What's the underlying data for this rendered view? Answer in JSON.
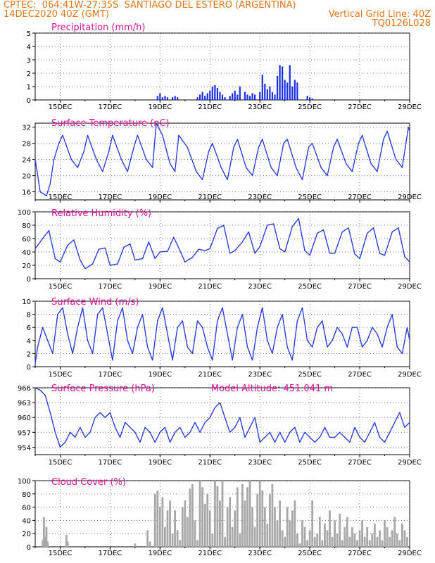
{
  "header": {
    "line1_left": "CPTEC:  064:41W-27:35S  SANTIAGO DEL ESTERO (ARGENTINA)",
    "line2_left": "14DEC2020 40Z (GMT)",
    "line2_right": "Vertical Grid Line: 40Z",
    "line3_right": "TQ0126L028"
  },
  "colors": {
    "header_text": "#e8761a",
    "panel_title": "#e0119a",
    "series_line": "#2a3ee0",
    "precip_bar": "#1a2ee8",
    "cloud_bar": "#a8a8a8",
    "grid": "#555555"
  },
  "chart_data": [
    {
      "type": "bar",
      "title": "Precipitation (mm/h)",
      "x_tick_labels": [
        "15DEC",
        "17DEC",
        "19DEC",
        "21DEC",
        "23DEC",
        "25DEC",
        "27DEC",
        "29DEC"
      ],
      "xlim_days": [
        14.0,
        29.0
      ],
      "ylim": [
        0,
        5
      ],
      "y_ticks": [
        0,
        1,
        2,
        3,
        4,
        5
      ],
      "x": [
        18.9,
        19.0,
        19.1,
        19.2,
        19.3,
        19.5,
        19.6,
        19.7,
        20.5,
        20.6,
        20.7,
        20.8,
        20.9,
        21.0,
        21.1,
        21.2,
        21.3,
        21.4,
        21.5,
        21.6,
        21.8,
        21.9,
        22.0,
        22.1,
        22.2,
        22.4,
        22.5,
        22.6,
        22.7,
        22.8,
        23.0,
        23.1,
        23.2,
        23.3,
        23.4,
        23.5,
        23.6,
        23.7,
        23.8,
        23.9,
        24.0,
        24.1,
        24.2,
        24.3,
        24.4,
        24.5,
        24.9,
        25.0,
        25.1
      ],
      "values": [
        0.3,
        0.5,
        0.2,
        0.3,
        0.2,
        0.2,
        0.3,
        0.2,
        0.2,
        0.4,
        0.6,
        0.3,
        0.5,
        0.7,
        1.0,
        1.1,
        0.9,
        0.6,
        0.4,
        0.2,
        0.3,
        0.5,
        0.7,
        0.4,
        1.0,
        0.6,
        0.4,
        0.3,
        0.5,
        0.4,
        0.6,
        1.9,
        1.2,
        0.8,
        1.0,
        0.6,
        0.4,
        1.8,
        2.6,
        2.5,
        1.5,
        1.3,
        2.6,
        1.0,
        1.5,
        1.3,
        0.3,
        0.2,
        0.1
      ]
    },
    {
      "type": "line",
      "title": "Surface Temperature (nC)",
      "x_tick_labels": [
        "15DEC",
        "17DEC",
        "19DEC",
        "21DEC",
        "23DEC",
        "25DEC",
        "27DEC",
        "29DEC"
      ],
      "xlim_days": [
        14.0,
        29.0
      ],
      "ylim": [
        14,
        33
      ],
      "y_ticks": [
        16,
        20,
        24,
        28,
        32
      ],
      "x": [
        14.0,
        14.2,
        14.45,
        14.6,
        14.75,
        14.95,
        15.1,
        15.45,
        15.7,
        15.95,
        16.1,
        16.45,
        16.7,
        16.95,
        17.1,
        17.45,
        17.7,
        17.95,
        18.1,
        18.45,
        18.7,
        18.85,
        19.1,
        19.4,
        19.6,
        19.75,
        20.1,
        20.45,
        20.7,
        20.95,
        21.1,
        21.45,
        21.7,
        21.95,
        22.1,
        22.45,
        22.7,
        22.95,
        23.1,
        23.45,
        23.7,
        23.95,
        24.1,
        24.45,
        24.7,
        24.95,
        25.1,
        25.45,
        25.7,
        25.95,
        26.1,
        26.45,
        26.7,
        26.95,
        27.1,
        27.45,
        27.7,
        27.95,
        28.1,
        28.45,
        28.7,
        28.95,
        29.0
      ],
      "values": [
        24,
        16,
        15,
        18,
        24,
        28,
        30,
        24,
        22,
        26,
        30,
        24,
        21,
        26,
        30,
        24,
        21,
        27,
        30,
        24,
        22,
        33,
        30,
        23,
        21,
        30,
        27,
        21,
        19,
        26,
        28,
        22,
        19,
        27,
        29,
        22,
        20,
        27,
        29,
        22,
        20,
        28,
        29,
        22,
        19,
        27,
        28,
        22,
        20,
        27,
        29,
        23,
        21,
        28,
        30,
        23,
        21,
        29,
        31,
        24,
        22,
        32,
        31
      ]
    },
    {
      "type": "line",
      "title": "Relative Humidity (%)",
      "x_tick_labels": [
        "15DEC",
        "17DEC",
        "19DEC",
        "21DEC",
        "23DEC",
        "25DEC",
        "27DEC",
        "29DEC"
      ],
      "xlim_days": [
        14.0,
        29.0
      ],
      "ylim": [
        0,
        100
      ],
      "y_ticks": [
        0,
        20,
        40,
        60,
        80,
        100
      ],
      "x": [
        14.0,
        14.3,
        14.55,
        14.8,
        15.0,
        15.3,
        15.55,
        15.8,
        16.0,
        16.3,
        16.55,
        16.8,
        17.0,
        17.3,
        17.55,
        17.8,
        18.0,
        18.3,
        18.55,
        18.8,
        19.0,
        19.3,
        19.55,
        19.8,
        20.0,
        20.3,
        20.55,
        20.8,
        21.0,
        21.3,
        21.55,
        21.8,
        22.0,
        22.3,
        22.55,
        22.8,
        23.0,
        23.3,
        23.55,
        23.8,
        24.0,
        24.3,
        24.55,
        24.8,
        25.0,
        25.3,
        25.55,
        25.8,
        26.0,
        26.3,
        26.55,
        26.8,
        27.0,
        27.3,
        27.55,
        27.8,
        28.0,
        28.3,
        28.55,
        28.8,
        29.0
      ],
      "values": [
        45,
        60,
        72,
        30,
        25,
        50,
        58,
        28,
        15,
        22,
        44,
        46,
        20,
        22,
        47,
        52,
        28,
        30,
        55,
        30,
        40,
        41,
        62,
        42,
        25,
        32,
        44,
        42,
        45,
        75,
        80,
        38,
        42,
        55,
        70,
        38,
        48,
        80,
        82,
        45,
        40,
        78,
        90,
        42,
        35,
        68,
        73,
        38,
        38,
        70,
        76,
        37,
        30,
        68,
        76,
        38,
        35,
        70,
        76,
        33,
        25
      ]
    },
    {
      "type": "line",
      "title": "Surface Wind (m/s)",
      "x_tick_labels": [
        "15DEC",
        "17DEC",
        "19DEC",
        "21DEC",
        "23DEC",
        "25DEC",
        "27DEC",
        "29DEC"
      ],
      "xlim_days": [
        14.0,
        29.0
      ],
      "ylim": [
        0,
        10
      ],
      "y_ticks": [
        0,
        2,
        4,
        6,
        8,
        10
      ],
      "x": [
        14.0,
        14.1,
        14.3,
        14.5,
        14.7,
        14.9,
        15.1,
        15.3,
        15.5,
        15.7,
        15.9,
        16.1,
        16.3,
        16.5,
        16.7,
        16.9,
        17.1,
        17.3,
        17.5,
        17.7,
        17.9,
        18.1,
        18.3,
        18.5,
        18.7,
        18.9,
        19.1,
        19.3,
        19.5,
        19.7,
        19.9,
        20.1,
        20.3,
        20.5,
        20.7,
        20.9,
        21.1,
        21.3,
        21.5,
        21.7,
        21.9,
        22.1,
        22.3,
        22.5,
        22.7,
        22.9,
        23.1,
        23.3,
        23.5,
        23.7,
        23.9,
        24.1,
        24.3,
        24.5,
        24.7,
        24.9,
        25.1,
        25.3,
        25.5,
        25.7,
        25.9,
        26.1,
        26.3,
        26.5,
        26.7,
        26.9,
        27.1,
        27.3,
        27.5,
        27.7,
        27.9,
        28.1,
        28.3,
        28.5,
        28.7,
        28.9,
        29.0
      ],
      "values": [
        0.5,
        3,
        6,
        4,
        2,
        8,
        9,
        5,
        2,
        6,
        9,
        4,
        2,
        8,
        9,
        5,
        1,
        7,
        9,
        4,
        2,
        6,
        8,
        3,
        1,
        7,
        9,
        5,
        1,
        6,
        7,
        3,
        2,
        7,
        6,
        3,
        1,
        7,
        9,
        5,
        1,
        6,
        8,
        3,
        1,
        6,
        9,
        4,
        2,
        6,
        8,
        3,
        1,
        7,
        9,
        4,
        3,
        6,
        7,
        3,
        4,
        6,
        5,
        3,
        6,
        6,
        3,
        4,
        6,
        5,
        3,
        6,
        8,
        3,
        2,
        6,
        4
      ]
    },
    {
      "type": "line",
      "title": "Surface Pressure (hPa)",
      "annotation": "Model Altitude: 451.041 m",
      "x_tick_labels": [
        "15DEC",
        "17DEC",
        "19DEC",
        "21DEC",
        "23DEC",
        "25DEC",
        "27DEC",
        "29DEC"
      ],
      "xlim_days": [
        14.0,
        29.0
      ],
      "ylim": [
        952.5,
        966
      ],
      "y_ticks": [
        954,
        957,
        960,
        963,
        966
      ],
      "x": [
        14.0,
        14.2,
        14.4,
        14.6,
        14.8,
        15.0,
        15.2,
        15.4,
        15.6,
        15.8,
        16.0,
        16.2,
        16.4,
        16.6,
        16.8,
        17.0,
        17.2,
        17.4,
        17.6,
        17.8,
        18.0,
        18.2,
        18.4,
        18.6,
        18.8,
        19.0,
        19.2,
        19.4,
        19.6,
        19.8,
        20.0,
        20.2,
        20.4,
        20.6,
        20.8,
        21.0,
        21.2,
        21.4,
        21.6,
        21.8,
        22.0,
        22.2,
        22.4,
        22.6,
        22.8,
        23.0,
        23.2,
        23.4,
        23.6,
        23.8,
        24.0,
        24.2,
        24.4,
        24.6,
        24.8,
        25.0,
        25.2,
        25.4,
        25.6,
        25.8,
        26.0,
        26.2,
        26.4,
        26.6,
        26.8,
        27.0,
        27.2,
        27.4,
        27.6,
        27.8,
        28.0,
        28.2,
        28.4,
        28.6,
        28.8,
        29.0
      ],
      "values": [
        966,
        965.5,
        964.5,
        961,
        957,
        954,
        955,
        957,
        956,
        958,
        956,
        957,
        960,
        961,
        960,
        961,
        958,
        956,
        959,
        958,
        957,
        955,
        958,
        957,
        955,
        957,
        958,
        955,
        957,
        958,
        956,
        957,
        959,
        957,
        959,
        960,
        962,
        963,
        960,
        957,
        958,
        960,
        956,
        958,
        960,
        955,
        956,
        957,
        955,
        957,
        955,
        957,
        958,
        955,
        957,
        956,
        955,
        956,
        958,
        956,
        956,
        957,
        956,
        955,
        958,
        956,
        955,
        957,
        959,
        956,
        955,
        957,
        959,
        961,
        958,
        959
      ]
    },
    {
      "type": "bar",
      "title": "Cloud Cover (%)",
      "x_tick_labels": [
        "15DEC",
        "17DEC",
        "19DEC",
        "21DEC",
        "23DEC",
        "25DEC",
        "27DEC",
        "29DEC"
      ],
      "xlim_days": [
        14.0,
        29.0
      ],
      "ylim": [
        0,
        100
      ],
      "y_ticks": [
        0,
        20,
        40,
        60,
        80,
        100
      ],
      "x": [
        14.3,
        14.35,
        14.4,
        14.45,
        14.5,
        15.25,
        15.3,
        18.0,
        18.5,
        18.6,
        18.8,
        18.9,
        19.0,
        19.1,
        19.2,
        19.3,
        19.4,
        19.5,
        19.6,
        19.7,
        19.8,
        19.9,
        20.0,
        20.1,
        20.2,
        20.3,
        20.4,
        20.5,
        20.6,
        20.7,
        20.8,
        20.9,
        21.0,
        21.1,
        21.2,
        21.3,
        21.4,
        21.5,
        21.6,
        21.7,
        21.8,
        21.9,
        22.0,
        22.1,
        22.2,
        22.3,
        22.4,
        22.5,
        22.6,
        22.7,
        22.8,
        22.9,
        23.0,
        23.1,
        23.2,
        23.3,
        23.4,
        23.5,
        23.6,
        23.7,
        23.8,
        23.9,
        24.0,
        24.1,
        24.2,
        24.3,
        24.4,
        24.5,
        24.6,
        24.7,
        24.8,
        24.9,
        25.0,
        25.1,
        25.2,
        25.3,
        25.4,
        25.5,
        25.6,
        25.7,
        25.8,
        25.9,
        26.0,
        26.1,
        26.2,
        26.3,
        26.4,
        26.5,
        26.6,
        26.7,
        26.8,
        26.9,
        27.0,
        27.1,
        27.2,
        27.3,
        27.4,
        27.5,
        27.6,
        27.7,
        27.8,
        27.9,
        28.0,
        28.1,
        28.2,
        28.3,
        28.4,
        28.5,
        28.6,
        28.7,
        28.8,
        28.9
      ],
      "values": [
        10,
        45,
        15,
        30,
        8,
        18,
        8,
        5,
        25,
        8,
        80,
        85,
        60,
        75,
        30,
        55,
        70,
        20,
        55,
        25,
        10,
        60,
        70,
        45,
        88,
        95,
        40,
        10,
        100,
        90,
        65,
        80,
        55,
        20,
        100,
        92,
        70,
        100,
        15,
        60,
        75,
        30,
        55,
        90,
        20,
        95,
        70,
        90,
        100,
        60,
        30,
        80,
        100,
        85,
        60,
        35,
        80,
        95,
        60,
        40,
        70,
        25,
        15,
        60,
        40,
        55,
        70,
        20,
        5,
        40,
        30,
        10,
        25,
        70,
        15,
        20,
        45,
        10,
        35,
        25,
        55,
        15,
        40,
        20,
        50,
        10,
        30,
        45,
        15,
        30,
        20,
        10,
        25,
        40,
        15,
        30,
        10,
        20,
        35,
        15,
        25,
        10,
        40,
        30,
        15,
        25,
        45,
        20,
        10,
        35,
        25,
        15
      ]
    }
  ]
}
